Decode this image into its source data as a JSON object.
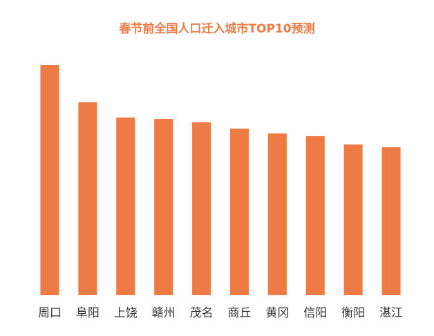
{
  "chart_data": {
    "type": "bar",
    "title": "春节前全国人口迁入城市TOP10预测",
    "categories": [
      "周口",
      "阜阳",
      "上饶",
      "赣州",
      "茂名",
      "商丘",
      "黄冈",
      "信阳",
      "衡阳",
      "湛江"
    ],
    "values": [
      333,
      279,
      257,
      255,
      250,
      241,
      234,
      230,
      218,
      214
    ],
    "color": "#ee7a45",
    "ylim": [
      0,
      333
    ]
  }
}
